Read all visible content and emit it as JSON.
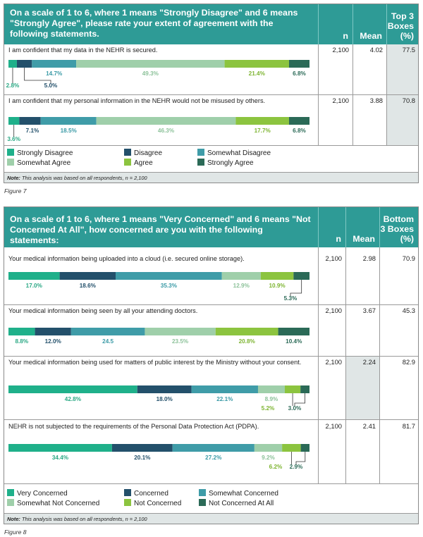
{
  "colors": {
    "header_bg": "#2e9b96",
    "c1": "#1fb08a",
    "c2": "#23506b",
    "c3": "#3f9ca8",
    "c4": "#9fcfaa",
    "c5": "#8cc43f",
    "c6": "#2b6a57",
    "shade": "#e0e6e6",
    "label1": "#2aa884",
    "label2": "#23506b",
    "label3": "#3a9aa6",
    "label4": "#8dc29a",
    "label5": "#7db431",
    "label6": "#2b6a57"
  },
  "figure7": {
    "question": "On a scale of 1 to 6, where 1 means \"Strongly Disagree\" and 6 means \"Strongly Agree\", please rate your extent of agreement with the following statements.",
    "col_n": "n",
    "col_mean": "Mean",
    "col_top_line1": "Top 3",
    "col_top_line2": "Boxes",
    "col_top_line3": "(%)",
    "legend": [
      "Strongly Disagree",
      "Disagree",
      "Somewhat Disagree",
      "Somewhat Agree",
      "Agree",
      "Strongly Agree"
    ],
    "note_bold": "Note:",
    "note_text": " This analysis was based on all respondents, n = 2,100",
    "caption": "Figure 7"
  },
  "figure8": {
    "question": "On a scale of 1 to 6, where 1 means \"Very Concerned\" and 6 means \"Not Concerned At All\", how concerned are you with the following statements:",
    "col_n": "n",
    "col_mean": "Mean",
    "col_bottom_line1": "Bottom",
    "col_bottom_line2": "3 Boxes",
    "col_bottom_line3": "(%)",
    "legend": [
      "Very Concerned",
      "Concerned",
      "Somewhat Concerned",
      "Somewhat Not Concerned",
      "Not Concerned",
      "Not Concerned At All"
    ],
    "note_bold": "Note:",
    "note_text": " This analysis was based on all respondents, n = 2,100",
    "caption": "Figure 8"
  },
  "chart_data": [
    {
      "type": "bar",
      "orientation": "horizontal-stacked",
      "series_names": [
        "Strongly Disagree",
        "Disagree",
        "Somewhat Disagree",
        "Somewhat Agree",
        "Agree",
        "Strongly Agree"
      ],
      "rows": [
        {
          "statement": "I am confident that my data in the NEHR is secured.",
          "n": "2,100",
          "mean": "4.02",
          "top3": "77.5",
          "values": [
            2.8,
            5.0,
            14.7,
            49.3,
            21.4,
            6.8
          ]
        },
        {
          "statement": "I am confident that my personal information in the NEHR would not be misused by others.",
          "n": "2,100",
          "mean": "3.88",
          "top3": "70.8",
          "values": [
            3.6,
            7.1,
            18.5,
            46.3,
            17.7,
            6.8
          ]
        }
      ]
    },
    {
      "type": "bar",
      "orientation": "horizontal-stacked",
      "series_names": [
        "Very Concerned",
        "Concerned",
        "Somewhat Concerned",
        "Somewhat Not Concerned",
        "Not Concerned",
        "Not Concerned At All"
      ],
      "rows": [
        {
          "statement": "Your medical information being uploaded into a cloud (i.e. secured online storage).",
          "n": "2,100",
          "mean": "2.98",
          "bottom3": "70.9",
          "values": [
            17.0,
            18.6,
            35.3,
            12.9,
            10.9,
            5.3
          ]
        },
        {
          "statement": "Your medical information being seen by all your attending doctors.",
          "n": "2,100",
          "mean": "3.67",
          "bottom3": "45.3",
          "values": [
            8.8,
            12.0,
            24.5,
            23.5,
            20.8,
            10.4
          ]
        },
        {
          "statement": "Your medical information being used for matters of public interest by the Ministry without your consent.",
          "n": "2,100",
          "mean": "2.24",
          "bottom3": "82.9",
          "values": [
            42.8,
            18.0,
            22.1,
            8.9,
            5.2,
            3.0
          ]
        },
        {
          "statement": "NEHR is not subjected to the requirements of the Personal Data Protection Act (PDPA).",
          "n": "2,100",
          "mean": "2.41",
          "bottom3": "81.7",
          "values": [
            34.4,
            20.1,
            27.2,
            9.2,
            6.2,
            2.9
          ]
        }
      ]
    }
  ]
}
